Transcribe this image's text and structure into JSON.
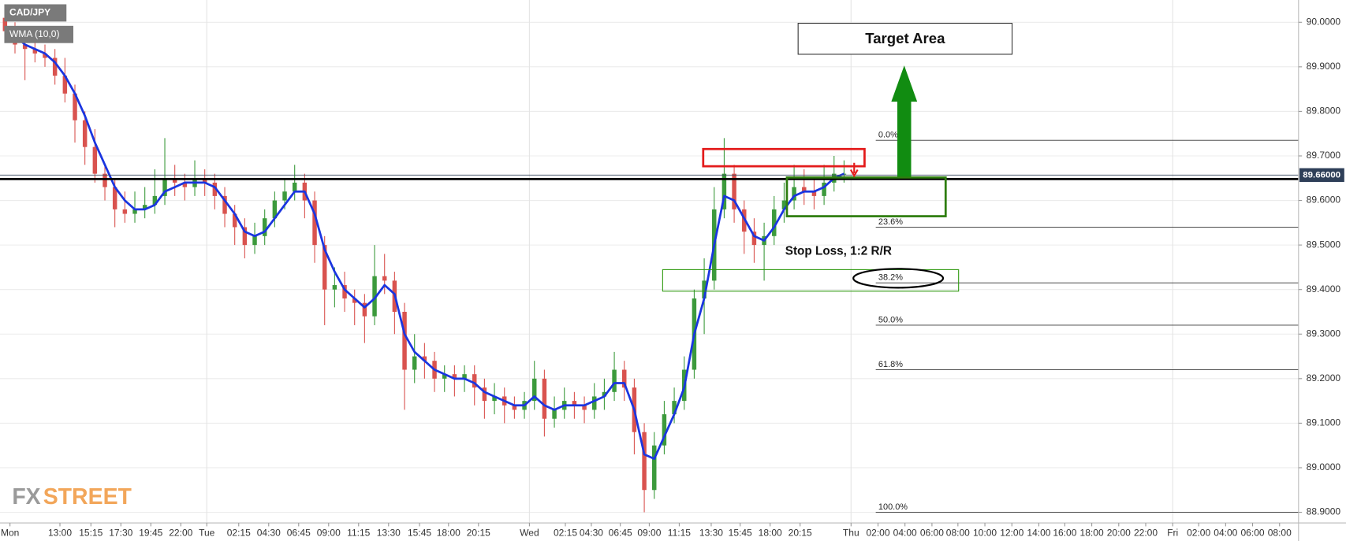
{
  "chart_data": {
    "type": "candlestick",
    "symbol": "CAD/JPY",
    "up_color": "#3c9a3c",
    "down_color": "#d9534f",
    "grid": true,
    "xlim": [
      0,
      130
    ],
    "ylim": [
      88.88,
      90.05
    ],
    "yticks": [
      {
        "value": 90.0,
        "label": "90.0000"
      },
      {
        "value": 89.9,
        "label": "89.9000"
      },
      {
        "value": 89.8,
        "label": "89.8000"
      },
      {
        "value": 89.7,
        "label": "89.7000"
      },
      {
        "value": 89.6,
        "label": "89.6000"
      },
      {
        "value": 89.5,
        "label": "89.5000"
      },
      {
        "value": 89.4,
        "label": "89.4000"
      },
      {
        "value": 89.3,
        "label": "89.3000"
      },
      {
        "value": 89.2,
        "label": "89.2000"
      },
      {
        "value": 89.1,
        "label": "89.1000"
      },
      {
        "value": 89.0,
        "label": "89.0000"
      },
      {
        "value": 88.9,
        "label": "88.9000"
      }
    ],
    "xticks": [
      {
        "value": 1.0,
        "label": "Mon"
      },
      {
        "value": 6.0,
        "label": "13:00"
      },
      {
        "value": 9.1,
        "label": "15:15"
      },
      {
        "value": 12.1,
        "label": "17:30"
      },
      {
        "value": 15.1,
        "label": "19:45"
      },
      {
        "value": 18.1,
        "label": "22:00"
      },
      {
        "value": 20.7,
        "label": "Tue"
      },
      {
        "value": 23.9,
        "label": "02:15"
      },
      {
        "value": 26.9,
        "label": "04:30"
      },
      {
        "value": 29.9,
        "label": "06:45"
      },
      {
        "value": 32.9,
        "label": "09:00"
      },
      {
        "value": 35.9,
        "label": "11:15"
      },
      {
        "value": 38.9,
        "label": "13:30"
      },
      {
        "value": 42.0,
        "label": "15:45"
      },
      {
        "value": 44.9,
        "label": "18:00"
      },
      {
        "value": 47.9,
        "label": "20:15"
      },
      {
        "value": 53.0,
        "label": "Wed"
      },
      {
        "value": 56.6,
        "label": "02:15"
      },
      {
        "value": 59.2,
        "label": "04:30"
      },
      {
        "value": 62.1,
        "label": "06:45"
      },
      {
        "value": 65.0,
        "label": "09:00"
      },
      {
        "value": 68.0,
        "label": "11:15"
      },
      {
        "value": 71.2,
        "label": "13:30"
      },
      {
        "value": 74.1,
        "label": "15:45"
      },
      {
        "value": 77.1,
        "label": "18:00"
      },
      {
        "value": 80.1,
        "label": "20:15"
      },
      {
        "value": 85.2,
        "label": "Thu"
      },
      {
        "value": 87.9,
        "label": "02:00"
      },
      {
        "value": 90.6,
        "label": "04:00"
      },
      {
        "value": 93.3,
        "label": "06:00"
      },
      {
        "value": 95.9,
        "label": "08:00"
      },
      {
        "value": 98.6,
        "label": "10:00"
      },
      {
        "value": 101.3,
        "label": "12:00"
      },
      {
        "value": 104.0,
        "label": "14:00"
      },
      {
        "value": 106.6,
        "label": "16:00"
      },
      {
        "value": 109.3,
        "label": "18:00"
      },
      {
        "value": 112.0,
        "label": "20:00"
      },
      {
        "value": 114.7,
        "label": "22:00"
      },
      {
        "value": 117.4,
        "label": "Fri"
      },
      {
        "value": 120.0,
        "label": "02:00"
      },
      {
        "value": 122.7,
        "label": "04:00"
      },
      {
        "value": 125.4,
        "label": "06:00"
      },
      {
        "value": 128.1,
        "label": "08:00"
      }
    ],
    "day_lines": [
      20.7,
      53.0,
      85.2,
      117.4
    ],
    "open": [
      90.01,
      89.98,
      89.95,
      89.94,
      89.93,
      89.92,
      89.88,
      89.84,
      89.78,
      89.72,
      89.66,
      89.63,
      89.58,
      89.57,
      89.58,
      89.59,
      89.61,
      89.65,
      89.64,
      89.63,
      89.65,
      89.64,
      89.61,
      89.57,
      89.54,
      89.5,
      89.52,
      89.56,
      89.6,
      89.62,
      89.64,
      89.6,
      89.5,
      89.4,
      89.41,
      89.38,
      89.37,
      89.34,
      89.43,
      89.42,
      89.35,
      89.22,
      89.25,
      89.24,
      89.2,
      89.21,
      89.2,
      89.21,
      89.18,
      89.15,
      89.16,
      89.14,
      89.13,
      89.15,
      89.2,
      89.11,
      89.13,
      89.15,
      89.14,
      89.13,
      89.16,
      89.17,
      89.22,
      89.18,
      89.08,
      88.95,
      89.05,
      89.12,
      89.15,
      89.22,
      89.38,
      89.42,
      89.58,
      89.66,
      89.58,
      89.53,
      89.5,
      89.52,
      89.58,
      89.6,
      89.63,
      89.62,
      89.61,
      89.64,
      89.66
    ],
    "high": [
      90.03,
      90.0,
      89.97,
      89.96,
      89.95,
      89.94,
      89.92,
      89.86,
      89.8,
      89.76,
      89.68,
      89.65,
      89.62,
      89.62,
      89.63,
      89.67,
      89.74,
      89.68,
      89.66,
      89.69,
      89.67,
      89.66,
      89.63,
      89.59,
      89.56,
      89.55,
      89.58,
      89.62,
      89.65,
      89.68,
      89.66,
      89.62,
      89.52,
      89.45,
      89.44,
      89.4,
      89.39,
      89.5,
      89.48,
      89.44,
      89.37,
      89.3,
      89.28,
      89.26,
      89.23,
      89.23,
      89.23,
      89.23,
      89.2,
      89.19,
      89.18,
      89.16,
      89.17,
      89.24,
      89.22,
      89.16,
      89.18,
      89.17,
      89.16,
      89.19,
      89.2,
      89.26,
      89.24,
      89.2,
      89.1,
      89.08,
      89.15,
      89.18,
      89.25,
      89.4,
      89.47,
      89.63,
      89.74,
      89.68,
      89.6,
      89.56,
      89.55,
      89.61,
      89.64,
      89.68,
      89.67,
      89.65,
      89.68,
      89.7,
      89.69
    ],
    "low": [
      89.96,
      89.93,
      89.87,
      89.91,
      89.9,
      89.86,
      89.82,
      89.73,
      89.68,
      89.64,
      89.6,
      89.54,
      89.55,
      89.55,
      89.56,
      89.57,
      89.59,
      89.61,
      89.6,
      89.61,
      89.61,
      89.58,
      89.54,
      89.5,
      89.47,
      89.48,
      89.5,
      89.54,
      89.58,
      89.6,
      89.56,
      89.46,
      89.32,
      89.36,
      89.35,
      89.32,
      89.28,
      89.32,
      89.39,
      89.3,
      89.13,
      89.19,
      89.2,
      89.17,
      89.17,
      89.16,
      89.17,
      89.14,
      89.11,
      89.12,
      89.1,
      89.11,
      89.11,
      89.13,
      89.07,
      89.09,
      89.11,
      89.11,
      89.1,
      89.11,
      89.13,
      89.15,
      89.15,
      89.03,
      88.9,
      88.93,
      89.03,
      89.1,
      89.13,
      89.2,
      89.3,
      89.4,
      89.56,
      89.55,
      89.48,
      89.46,
      89.42,
      89.5,
      89.55,
      89.58,
      89.59,
      89.58,
      89.59,
      89.62,
      89.64
    ],
    "close": [
      89.98,
      89.95,
      89.94,
      89.93,
      89.92,
      89.88,
      89.84,
      89.78,
      89.72,
      89.66,
      89.63,
      89.58,
      89.57,
      89.58,
      89.59,
      89.61,
      89.65,
      89.64,
      89.63,
      89.65,
      89.64,
      89.61,
      89.57,
      89.54,
      89.5,
      89.52,
      89.56,
      89.6,
      89.62,
      89.64,
      89.6,
      89.5,
      89.4,
      89.41,
      89.38,
      89.37,
      89.34,
      89.43,
      89.42,
      89.35,
      89.22,
      89.25,
      89.24,
      89.2,
      89.21,
      89.2,
      89.21,
      89.18,
      89.15,
      89.16,
      89.14,
      89.13,
      89.15,
      89.2,
      89.11,
      89.13,
      89.15,
      89.14,
      89.13,
      89.16,
      89.17,
      89.22,
      89.18,
      89.08,
      88.95,
      89.05,
      89.12,
      89.15,
      89.22,
      89.38,
      89.42,
      89.58,
      89.66,
      89.58,
      89.53,
      89.5,
      89.52,
      89.58,
      89.6,
      89.63,
      89.62,
      89.61,
      89.64,
      89.66,
      89.66
    ],
    "series": [
      {
        "name": "WMA (10,0)",
        "color": "#1a35e0",
        "values": [
          89.99,
          89.97,
          89.95,
          89.94,
          89.93,
          89.91,
          89.88,
          89.84,
          89.79,
          89.73,
          89.68,
          89.63,
          89.6,
          89.58,
          89.58,
          89.59,
          89.62,
          89.63,
          89.64,
          89.64,
          89.64,
          89.63,
          89.6,
          89.57,
          89.53,
          89.52,
          89.53,
          89.56,
          89.59,
          89.62,
          89.62,
          89.57,
          89.49,
          89.44,
          89.4,
          89.38,
          89.36,
          89.38,
          89.41,
          89.39,
          89.3,
          89.26,
          89.24,
          89.22,
          89.21,
          89.2,
          89.2,
          89.19,
          89.17,
          89.16,
          89.15,
          89.14,
          89.14,
          89.16,
          89.14,
          89.13,
          89.14,
          89.14,
          89.14,
          89.15,
          89.16,
          89.19,
          89.19,
          89.13,
          89.03,
          89.02,
          89.07,
          89.12,
          89.18,
          89.3,
          89.38,
          89.5,
          89.61,
          89.6,
          89.56,
          89.52,
          89.51,
          89.54,
          89.58,
          89.61,
          89.62,
          89.62,
          89.63,
          89.65,
          89.66
        ]
      }
    ],
    "support": 89.648,
    "last_price": {
      "value": 89.657,
      "label": "89.66000"
    },
    "fib_levels": [
      {
        "level": "0.0%",
        "price": 89.735
      },
      {
        "level": "23.6%",
        "price": 89.54
      },
      {
        "level": "38.2%",
        "price": 89.415
      },
      {
        "level": "50.0%",
        "price": 89.32
      },
      {
        "level": "61.8%",
        "price": 89.22
      },
      {
        "level": "100.0%",
        "price": 88.9
      }
    ],
    "annotations": {
      "target": "Target Area",
      "stop_loss": "Stop Loss, 1:2 R/R"
    },
    "brand": {
      "fx": "FX",
      "street": "STREET"
    }
  }
}
